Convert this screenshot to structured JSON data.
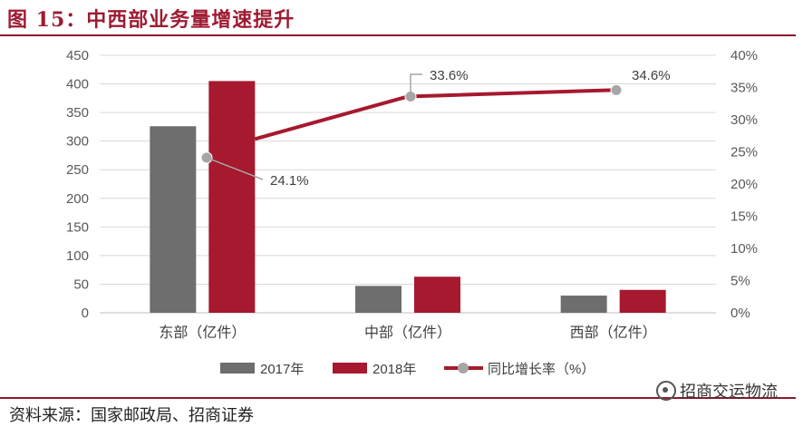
{
  "header": {
    "title": "图 15：中西部业务量增速提升"
  },
  "footer": {
    "source": "资料来源：国家邮政局、招商证券",
    "watermark": "招商交运物流"
  },
  "colors": {
    "series_2017": "#6e6e6e",
    "series_2018": "#a6192e",
    "line": "#a6192e",
    "marker": "#a6a6a6",
    "brand": "#9e1b32"
  },
  "chart_data": {
    "type": "bar",
    "categories": [
      "东部（亿件）",
      "中部（亿件）",
      "西部（亿件）"
    ],
    "series": [
      {
        "name": "2017年",
        "type": "bar",
        "axis": "left",
        "values": [
          326,
          47,
          30
        ]
      },
      {
        "name": "2018年",
        "type": "bar",
        "axis": "left",
        "values": [
          405,
          63,
          40
        ]
      },
      {
        "name": "同比增长率（%）",
        "type": "line",
        "axis": "right",
        "values": [
          24.1,
          33.6,
          34.6
        ],
        "labels": [
          "24.1%",
          "33.6%",
          "34.6%"
        ]
      }
    ],
    "y_left": {
      "min": 0,
      "max": 450,
      "ticks": [
        0,
        50,
        100,
        150,
        200,
        250,
        300,
        350,
        400,
        450
      ],
      "tick_labels": [
        "0",
        "50",
        "100",
        "150",
        "200",
        "250",
        "300",
        "350",
        "400",
        "450"
      ]
    },
    "y_right": {
      "min": 0,
      "max": 40,
      "ticks": [
        0,
        5,
        10,
        15,
        20,
        25,
        30,
        35,
        40
      ],
      "tick_labels": [
        "0%",
        "5%",
        "10%",
        "15%",
        "20%",
        "25%",
        "30%",
        "35%",
        "40%"
      ]
    },
    "grid": true,
    "legend_position": "bottom",
    "legend": [
      "2017年",
      "2018年",
      "同比增长率（%）"
    ]
  }
}
